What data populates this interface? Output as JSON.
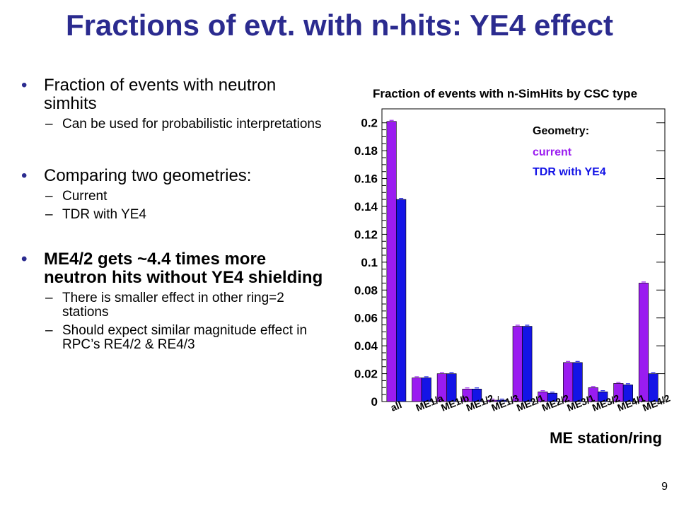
{
  "slide": {
    "title": "Fractions of evt. with n-hits: YE4 effect",
    "page_number": "9"
  },
  "bullets": [
    {
      "text": "Fraction of events with neutron simhits",
      "bold": false,
      "sub": [
        "Can be used for probabilistic interpretations"
      ]
    },
    {
      "text": "Comparing two geometries:",
      "bold": false,
      "sub": [
        "Current",
        "TDR with YE4"
      ]
    },
    {
      "text": "ME4/2 gets ~4.4 times more neutron hits without YE4 shielding",
      "bold": true,
      "sub": [
        "There is smaller effect in other ring=2 stations",
        "Should expect similar magnitude effect in RPC’s RE4/2 & RE4/3"
      ]
    }
  ],
  "chart_data": {
    "type": "bar",
    "title": "Fraction of events with n-SimHits by CSC type",
    "xlabel": "ME station/ring",
    "ylabel": "",
    "ylim": [
      0,
      0.21
    ],
    "y_ticks": [
      "0",
      "0.02",
      "0.04",
      "0.06",
      "0.08",
      "0.1",
      "0.12",
      "0.14",
      "0.16",
      "0.18",
      "0.2"
    ],
    "categories": [
      "all",
      "ME1/a",
      "ME1/b",
      "ME1/2",
      "ME1/3",
      "ME2/1",
      "ME2/2",
      "ME3/1",
      "ME3/2",
      "ME4/1",
      "ME4/2"
    ],
    "legend_title": "Geometry:",
    "legend_position": "top-right",
    "series": [
      {
        "name": "current",
        "color": "#9a1cf0",
        "values": [
          0.201,
          0.017,
          0.02,
          0.009,
          0.001,
          0.054,
          0.007,
          0.028,
          0.01,
          0.013,
          0.085
        ]
      },
      {
        "name": "TDR with YE4",
        "color": "#1414e6",
        "values": [
          0.145,
          0.017,
          0.02,
          0.009,
          0.001,
          0.054,
          0.006,
          0.028,
          0.007,
          0.012,
          0.02
        ]
      }
    ]
  }
}
